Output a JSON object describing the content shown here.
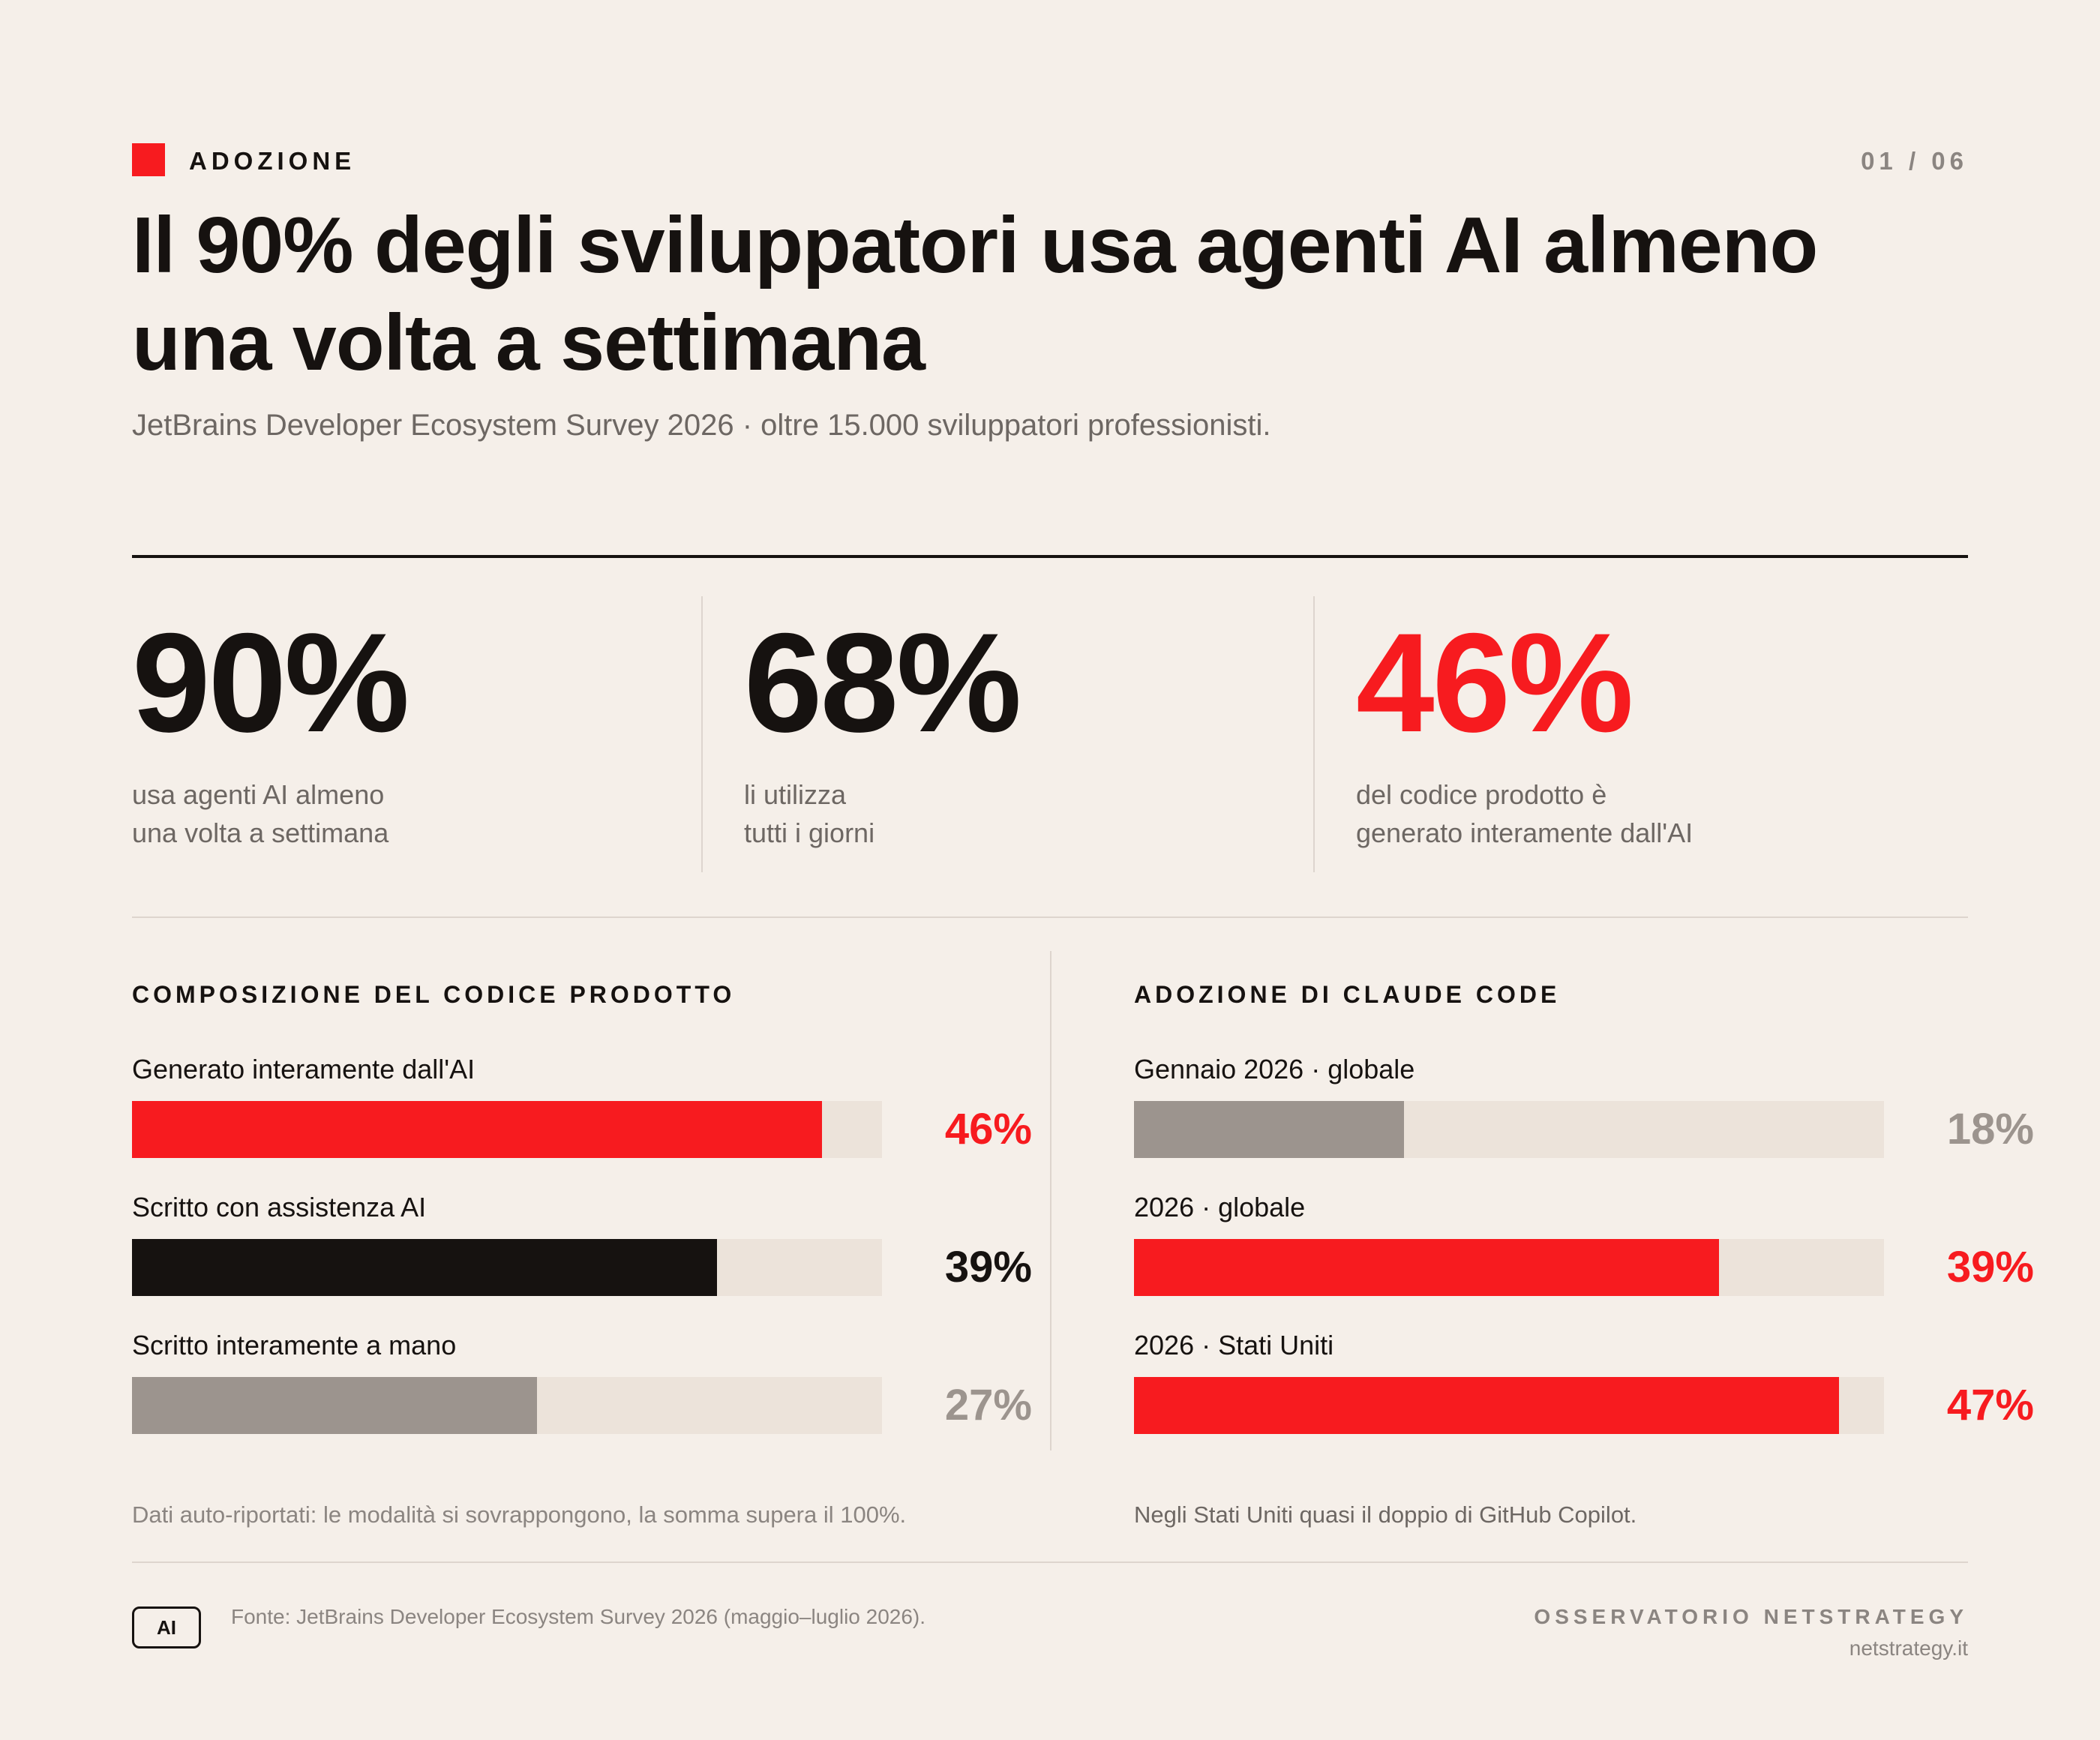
{
  "header": {
    "tag": "ADOZIONE",
    "page": "01 / 06",
    "title": "Il 90% degli sviluppatori usa agenti AI almeno una volta a settimana",
    "subtitle": "JetBrains Developer Ecosystem Survey 2026 · oltre 15.000 sviluppatori professionisti."
  },
  "kpis": [
    {
      "value": "90%",
      "label": "usa agenti AI almeno\nuna volta a settimana",
      "color": "#161210"
    },
    {
      "value": "68%",
      "label": "li utilizza\ntutti i giorni",
      "color": "#161210"
    },
    {
      "value": "46%",
      "label": "del codice prodotto è\ngenerato interamente dall'AI",
      "color": "#f71b1f"
    }
  ],
  "chart_data": [
    {
      "type": "bar",
      "title": "COMPOSIZIONE DEL CODICE PRODOTTO",
      "categories": [
        "Generato interamente dall'AI",
        "Scritto con assistenza AI",
        "Scritto interamente a mano"
      ],
      "values": [
        46,
        39,
        27
      ],
      "value_labels": [
        "46%",
        "39%",
        "27%"
      ],
      "colors": [
        "#f71b1f",
        "#161210",
        "#9c948e"
      ],
      "xlim": [
        0,
        50
      ],
      "note": "Dati auto-riportati: le modalità si sovrappongono, la somma supera il 100%."
    },
    {
      "type": "bar",
      "title": "ADOZIONE DI CLAUDE CODE",
      "categories": [
        "Gennaio 2026 · globale",
        "2026 · globale",
        "2026 · Stati Uniti"
      ],
      "values": [
        18,
        39,
        47
      ],
      "value_labels": [
        "18%",
        "39%",
        "47%"
      ],
      "colors": [
        "#9c948e",
        "#f71b1f",
        "#f71b1f"
      ],
      "xlim": [
        0,
        50
      ],
      "note": "Negli Stati Uniti quasi il doppio di GitHub Copilot."
    }
  ],
  "footer": {
    "badge": "AI",
    "source": "Fonte: JetBrains Developer Ecosystem Survey 2026 (maggio–luglio 2026).",
    "brand": "OSSERVATORIO NETSTRATEGY",
    "site": "netstrategy.it"
  },
  "colors": {
    "background": "#f5efe9",
    "accent": "#f71b1f",
    "ink": "#161210",
    "muted": "#8b8581",
    "track": "#ece3da"
  }
}
